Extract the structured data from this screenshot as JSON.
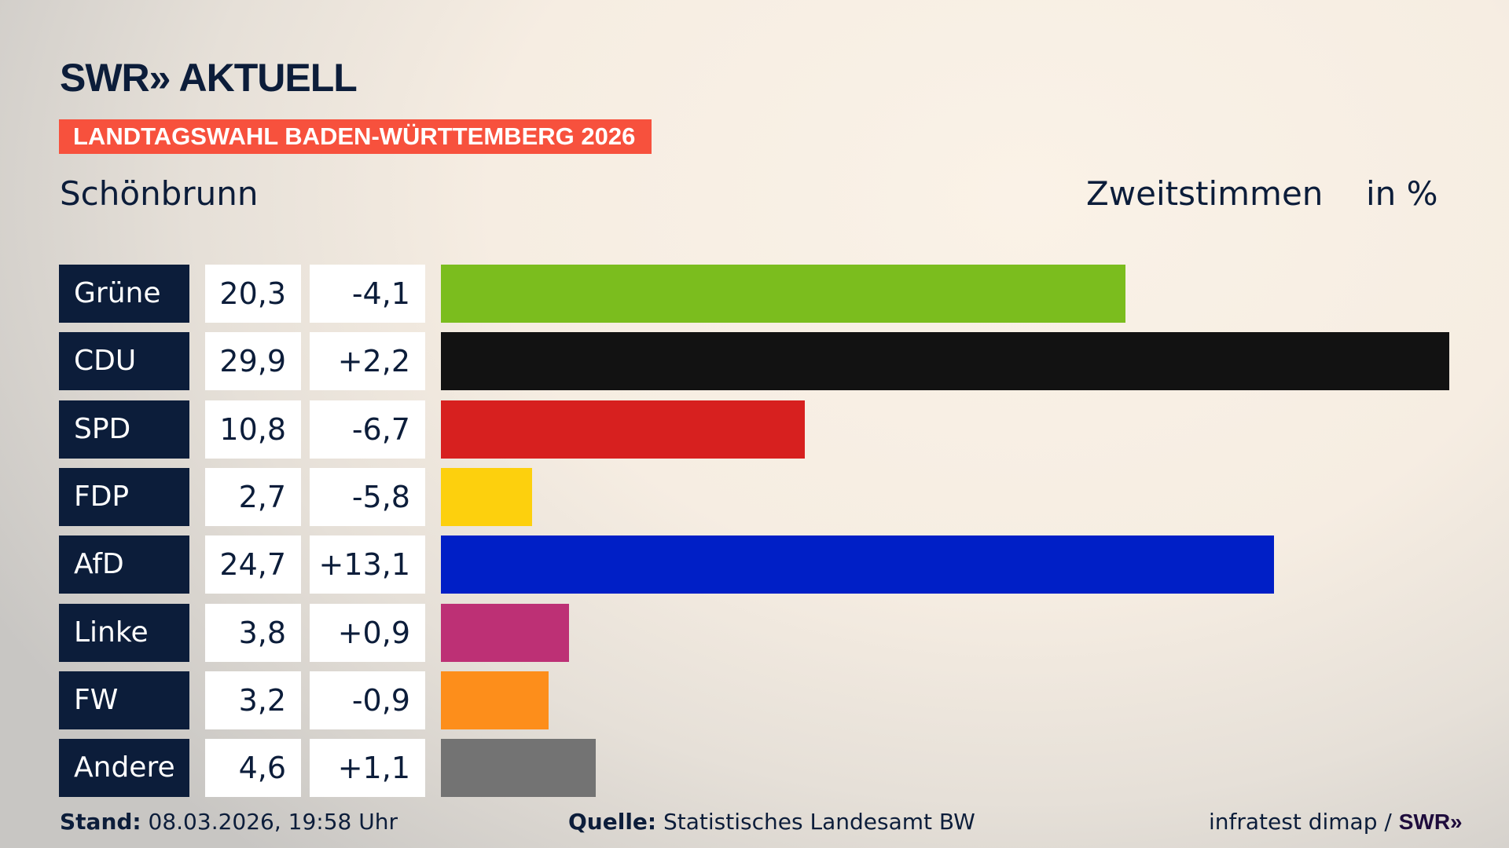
{
  "header": {
    "logo": "SWR» AKTUELL",
    "banner": "LANDTAGSWAHL BADEN-WÜRTTEMBERG 2026",
    "place": "Schönbrunn",
    "mode": "Zweitstimmen",
    "unit": "in %"
  },
  "chart_data": {
    "type": "bar",
    "orientation": "horizontal",
    "xlim": [
      0,
      29.9
    ],
    "categories": [
      "Grüne",
      "CDU",
      "SPD",
      "FDP",
      "AfD",
      "Linke",
      "FW",
      "Andere"
    ],
    "values": [
      20.3,
      29.9,
      10.8,
      2.7,
      24.7,
      3.8,
      3.2,
      4.6
    ],
    "value_labels": [
      "20,3",
      "29,9",
      "10,8",
      "2,7",
      "24,7",
      "3,8",
      "3,2",
      "4,6"
    ],
    "diff_labels": [
      "-4,1",
      "+2,2",
      "-6,7",
      "-5,8",
      "+13,1",
      "+0,9",
      "-0,9",
      "+1,1"
    ],
    "colors": [
      "#7bbd1e",
      "#121212",
      "#d7201f",
      "#fdd00d",
      "#001fc6",
      "#bd3075",
      "#fd8e1b",
      "#737373"
    ]
  },
  "footer": {
    "stand_label": "Stand:",
    "stand": "08.03.2026, 19:58 Uhr",
    "source_label": "Quelle:",
    "source": "Statistisches Landesamt BW",
    "credit": "infratest dimap / ",
    "credit_logo": "SWR»"
  }
}
